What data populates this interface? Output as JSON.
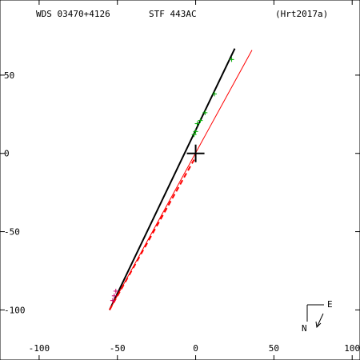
{
  "header": {
    "left": "WDS 03470+4126",
    "center": "STF 443AC",
    "right": "(Hrt2017a)"
  },
  "compass": {
    "north": "N",
    "east": "E"
  },
  "colors": {
    "axes": "#000000",
    "orbit": "#000000",
    "red_line": "#ff0000",
    "green_obs": "#00aa00",
    "magenta_obs": "#cc0066"
  },
  "chart_data": {
    "type": "scatter",
    "xlim": [
      -125,
      105
    ],
    "ylim": [
      -132,
      98
    ],
    "x_inverted": false,
    "grid": false,
    "x_ticks": [
      -100,
      -50,
      0,
      50,
      100
    ],
    "x_tick_labels": [
      "-100",
      "-50",
      "0",
      "50",
      "100"
    ],
    "y_ticks": [
      -100,
      -50,
      0,
      50
    ],
    "y_tick_labels": [
      "-100",
      "-50",
      "0",
      "50"
    ],
    "primary": {
      "x": 0,
      "y": 0
    },
    "series": [
      {
        "kind": "line",
        "style": "solid",
        "color_key": "orbit",
        "points": [
          [
            -55,
            -100
          ],
          [
            25,
            67
          ]
        ]
      },
      {
        "kind": "line",
        "style": "solid",
        "color_key": "red_line",
        "points": [
          [
            -55,
            -100
          ],
          [
            36,
            66
          ]
        ]
      },
      {
        "kind": "line",
        "style": "dashed",
        "color_key": "red_line",
        "points": [
          [
            -55,
            -100
          ],
          [
            -1,
            -4
          ]
        ]
      },
      {
        "kind": "markers",
        "color_key": "green_obs",
        "points": [
          [
            23,
            60
          ],
          [
            12,
            38
          ],
          [
            6,
            26
          ],
          [
            3,
            21
          ],
          [
            1,
            19
          ],
          [
            0,
            14
          ],
          [
            -1,
            12
          ]
        ]
      },
      {
        "kind": "markers",
        "color_key": "magenta_obs",
        "points": [
          [
            -51,
            -88
          ],
          [
            -52,
            -91
          ],
          [
            -53,
            -94
          ]
        ]
      }
    ]
  }
}
